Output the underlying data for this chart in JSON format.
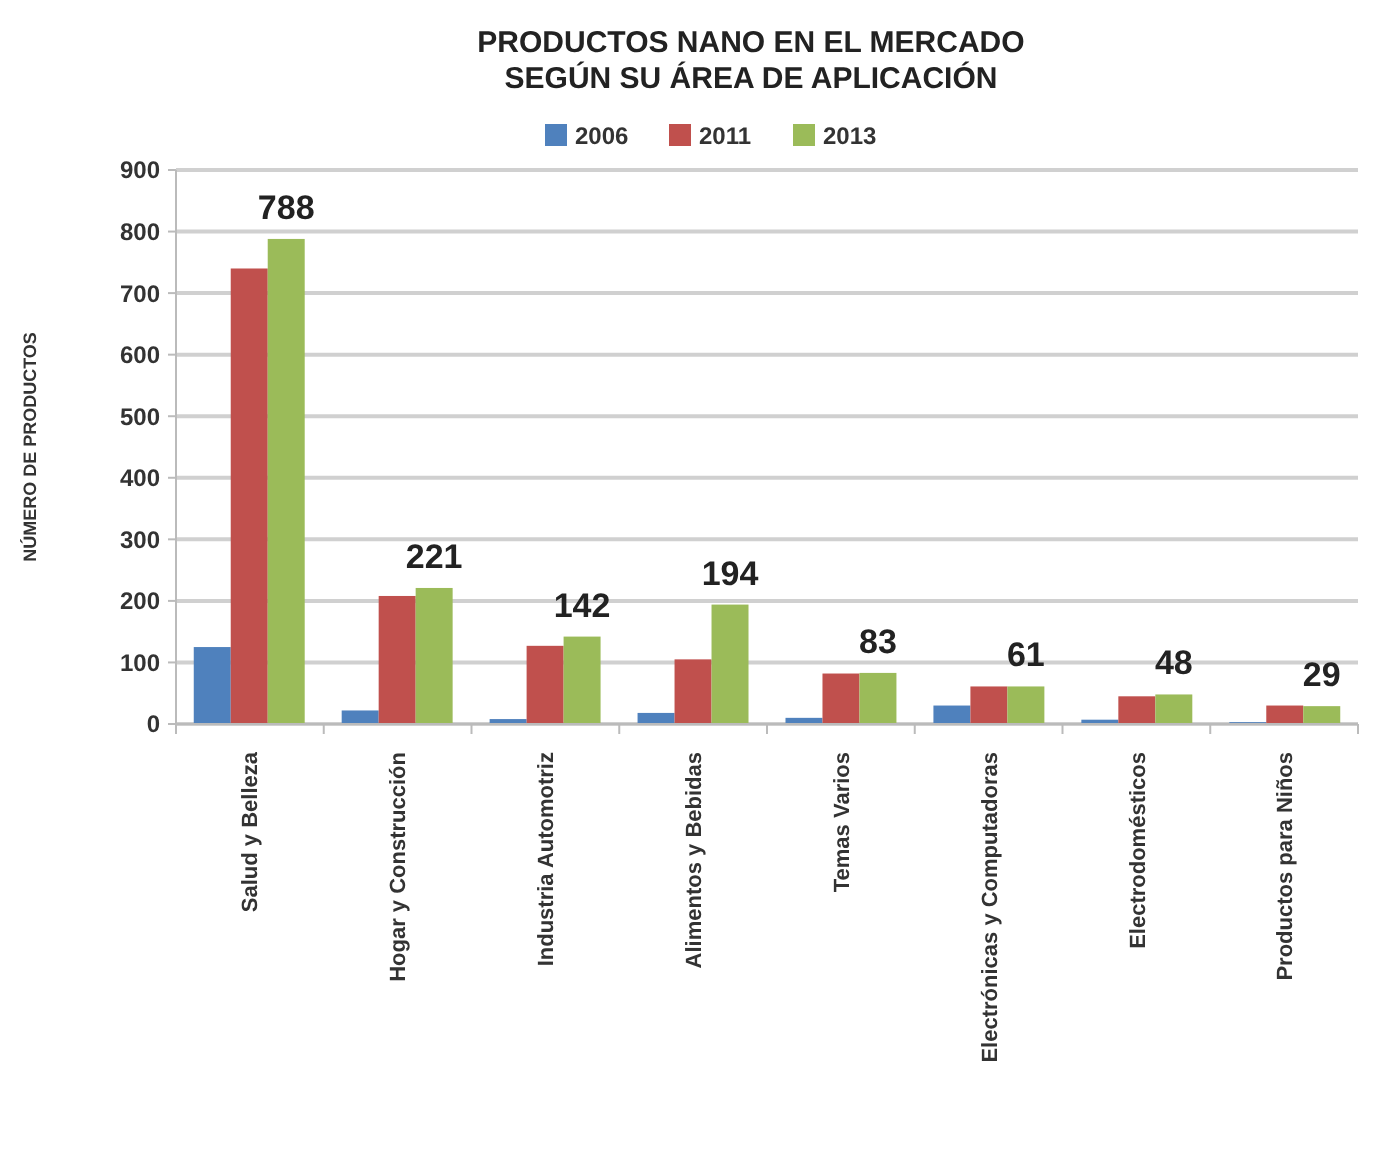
{
  "chart_data": {
    "type": "bar",
    "title": "PRODUCTOS NANO EN EL MERCADO\nSEGÚN SU ÁREA DE APLICACIÓN",
    "ylabel": "NÚMERO DE PRODUCTOS",
    "categories": [
      "Salud y Belleza",
      "Hogar y Construcción",
      "Industria Automotriz",
      "Alimentos y Bebidas",
      "Temas Varios",
      "Electrónicas y Computadoras",
      "Electrodomésticos",
      "Productos para Niños"
    ],
    "series": [
      {
        "name": "2006",
        "color": "#4f81bd",
        "values": [
          125,
          22,
          8,
          18,
          10,
          30,
          7,
          3
        ]
      },
      {
        "name": "2011",
        "color": "#c0504d",
        "values": [
          740,
          208,
          127,
          105,
          82,
          61,
          45,
          30
        ]
      },
      {
        "name": "2013",
        "color": "#9bbb59",
        "values": [
          788,
          221,
          142,
          194,
          83,
          61,
          48,
          29
        ],
        "value_labels": [
          "788",
          "221",
          "142",
          "194",
          "83",
          "61",
          "48",
          "29"
        ]
      }
    ],
    "ylim": [
      0,
      900
    ],
    "yticks": [
      0,
      100,
      200,
      300,
      400,
      500,
      600,
      700,
      800,
      900
    ],
    "grid": "y",
    "legend": "top"
  }
}
